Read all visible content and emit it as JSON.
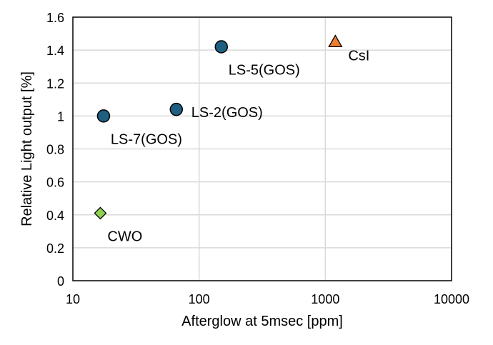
{
  "chart_data": {
    "type": "scatter",
    "title": "",
    "xlabel": "Afterglow at 5msec [ppm]",
    "ylabel": "Relative Light output [%]",
    "xscale": "log",
    "xlim": [
      10,
      10000
    ],
    "ylim": [
      0,
      1.6
    ],
    "xticks": [
      10,
      100,
      1000,
      10000
    ],
    "xtick_labels": [
      "10",
      "100",
      "1000",
      "10000"
    ],
    "yticks": [
      0,
      0.2,
      0.4,
      0.6,
      0.8,
      1,
      1.2,
      1.4,
      1.6
    ],
    "ytick_labels": [
      "0",
      "0.2",
      "0.4",
      "0.6",
      "0.8",
      "1",
      "1.2",
      "1.4",
      "1.6"
    ],
    "grid": true,
    "legend": "none",
    "points": [
      {
        "label": "LS-7(GOS)",
        "x": 17.5,
        "y": 1.0,
        "marker": "circle",
        "color": "#1f5f82",
        "label_pos": "below-right"
      },
      {
        "label": "LS-2(GOS)",
        "x": 66,
        "y": 1.04,
        "marker": "circle",
        "color": "#1f5f82",
        "label_pos": "right"
      },
      {
        "label": "LS-5(GOS)",
        "x": 150,
        "y": 1.42,
        "marker": "circle",
        "color": "#1f5f82",
        "label_pos": "below-right"
      },
      {
        "label": "CsI",
        "x": 1200,
        "y": 1.45,
        "marker": "triangle",
        "color": "#ed7d31",
        "label_pos": "below-right"
      },
      {
        "label": "CWO",
        "x": 16.5,
        "y": 0.41,
        "marker": "diamond",
        "color": "#92d050",
        "label_pos": "below-right"
      }
    ]
  }
}
